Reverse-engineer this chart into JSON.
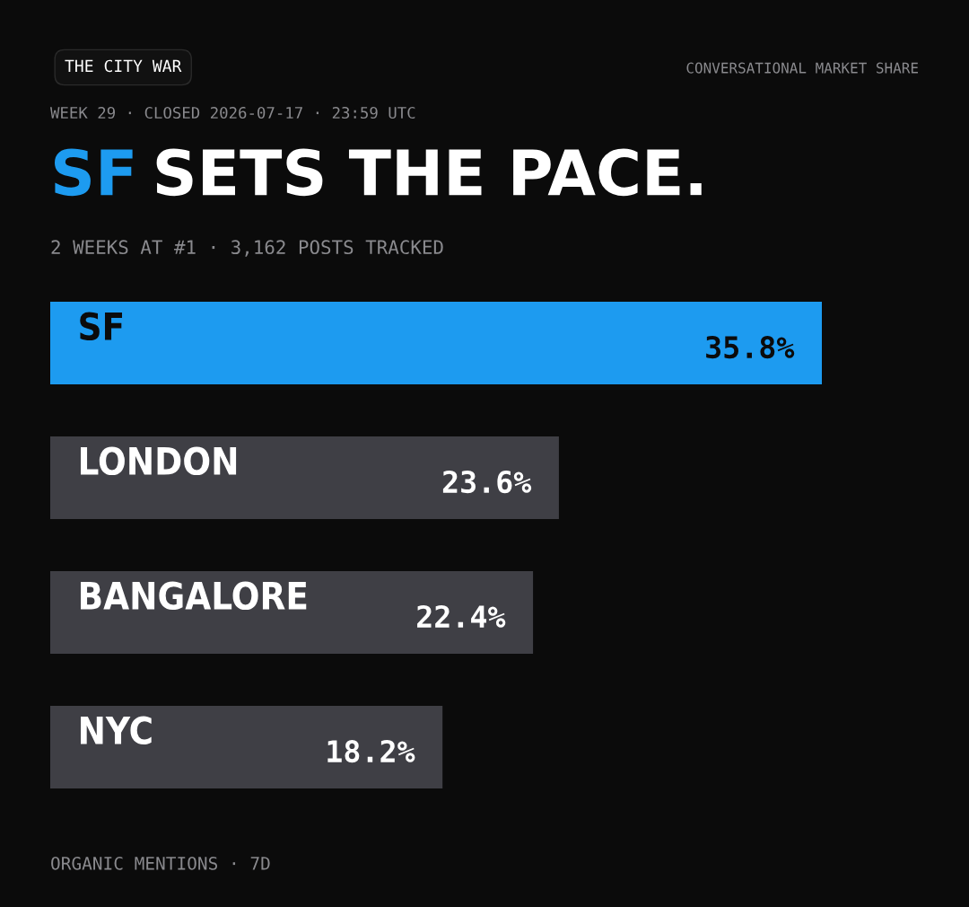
{
  "chart_data": {
    "type": "bar",
    "orientation": "horizontal",
    "title": "SF SETS THE PACE.",
    "subtitle": "2 WEEKS AT #1 · 3,162 POSTS TRACKED",
    "categories": [
      "SF",
      "LONDON",
      "BANGALORE",
      "NYC"
    ],
    "values": [
      35.8,
      23.6,
      22.4,
      18.2
    ],
    "value_labels": [
      "35.8%",
      "23.6%",
      "22.4%",
      "18.2%"
    ],
    "colors": [
      "#1d9bf0",
      "#3f3f45",
      "#3f3f45",
      "#3f3f45"
    ],
    "tick_labels": false,
    "grid": false,
    "legend": false,
    "annotations": [
      "THE CITY WAR",
      "CONVERSATIONAL MARKET SHARE",
      "WEEK 29 · CLOSED 2026-07-17 · 23:59 UTC",
      "ORGANIC MENTIONS · 7D"
    ]
  }
}
